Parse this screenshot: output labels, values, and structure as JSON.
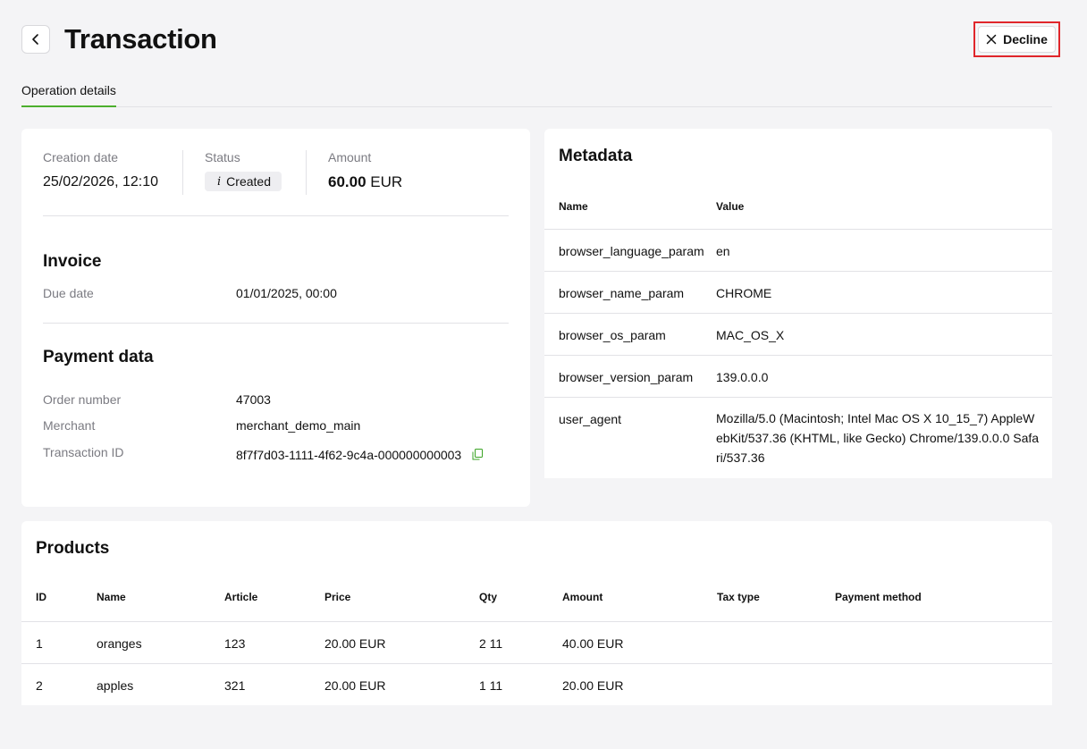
{
  "header": {
    "title": "Transaction",
    "decline_label": "Decline"
  },
  "tabs": [
    {
      "label": "Operation details",
      "active": true
    }
  ],
  "summary": {
    "creation_date_label": "Creation date",
    "creation_date": "25/02/2026, 12:10",
    "status_label": "Status",
    "status_icon": "i",
    "status": "Created",
    "amount_label": "Amount",
    "amount_value": "60.00",
    "amount_currency": "EUR"
  },
  "invoice": {
    "title": "Invoice",
    "due_date_label": "Due date",
    "due_date": "01/01/2025, 00:00"
  },
  "payment": {
    "title": "Payment data",
    "order_number_label": "Order number",
    "order_number": "47003",
    "merchant_label": "Merchant",
    "merchant": "merchant_demo_main",
    "transaction_id_label": "Transaction ID",
    "transaction_id": "8f7f7d03-1111-4f62-9c4a-000000000003"
  },
  "metadata": {
    "title": "Metadata",
    "col_name": "Name",
    "col_value": "Value",
    "rows": [
      {
        "name": "browser_language_param",
        "value": "en"
      },
      {
        "name": "browser_name_param",
        "value": "CHROME"
      },
      {
        "name": "browser_os_param",
        "value": "MAC_OS_X"
      },
      {
        "name": "browser_version_param",
        "value": "139.0.0.0"
      },
      {
        "name": "user_agent",
        "value": "Mozilla/5.0 (Macintosh; Intel Mac OS X 10_15_7) AppleWebKit/537.36 (KHTML, like Gecko) Chrome/139.0.0.0 Safari/537.36"
      }
    ]
  },
  "products": {
    "title": "Products",
    "columns": [
      "ID",
      "Name",
      "Article",
      "Price",
      "Qty",
      "Amount",
      "Tax type",
      "Payment method"
    ],
    "rows": [
      {
        "id": "1",
        "name": "oranges",
        "article": "123",
        "price": "20.00 EUR",
        "qty": "2 11",
        "amount": "40.00 EUR",
        "tax_type": "",
        "payment_method": ""
      },
      {
        "id": "2",
        "name": "apples",
        "article": "321",
        "price": "20.00 EUR",
        "qty": "1 11",
        "amount": "20.00 EUR",
        "tax_type": "",
        "payment_method": ""
      }
    ]
  },
  "colors": {
    "accent": "#3aa324",
    "danger": "#e0262b"
  }
}
